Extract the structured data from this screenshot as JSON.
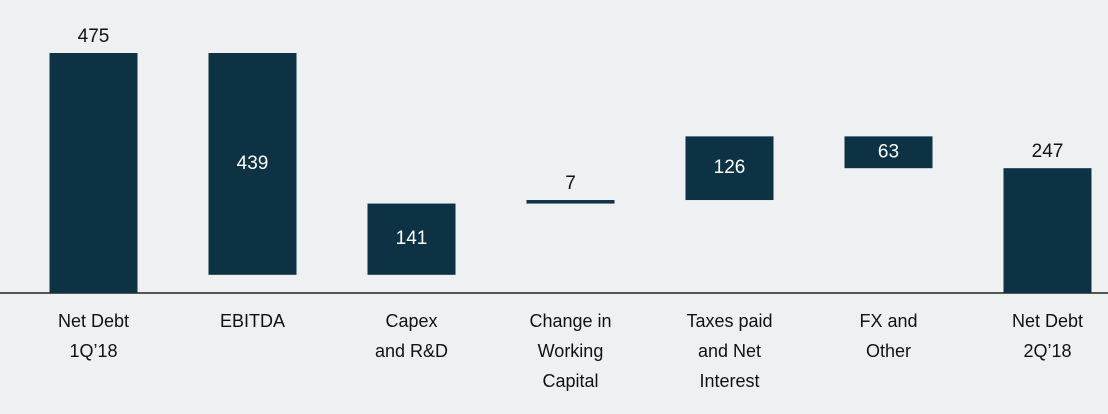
{
  "chart_data": {
    "type": "waterfall",
    "categories": [
      "Net Debt\n1Q’18",
      "EBITDA",
      "Capex\nand R&D",
      "Change in\nWorking\nCapital",
      "Taxes paid\nand Net\nInterest",
      "FX and\nOther",
      "Net Debt\n2Q’18"
    ],
    "values": [
      475,
      -439,
      141,
      7,
      126,
      -63,
      247
    ],
    "value_labels": [
      "475",
      "439",
      "141",
      "7",
      "126",
      "63",
      "247"
    ],
    "measure": [
      "total",
      "relative",
      "relative",
      "relative",
      "relative",
      "relative",
      "total"
    ],
    "color": "#0c3243",
    "ylim": [
      0,
      475
    ]
  }
}
